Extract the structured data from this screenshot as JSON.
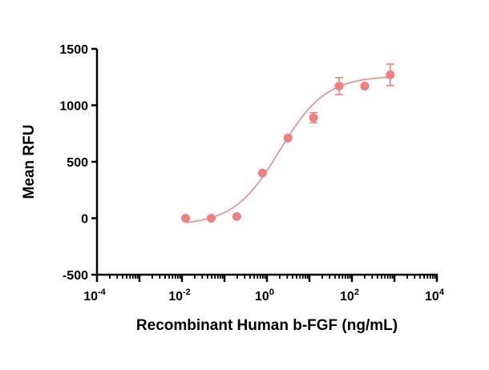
{
  "chart_data": {
    "type": "scatter",
    "title": "",
    "xlabel": "Recombinant Human b-FGF (ng/mL)",
    "ylabel": "Mean RFU",
    "xscale": "log",
    "xlim": [
      0.0001,
      10000
    ],
    "ylim": [
      -500,
      1500
    ],
    "xticks": [
      {
        "base": "10",
        "exp": "-4",
        "value": 0.0001
      },
      {
        "base": "10",
        "exp": "-2",
        "value": 0.01
      },
      {
        "base": "10",
        "exp": "0",
        "value": 1
      },
      {
        "base": "10",
        "exp": "2",
        "value": 100
      },
      {
        "base": "10",
        "exp": "4",
        "value": 10000
      }
    ],
    "yticks": [
      "-500",
      "0",
      "500",
      "1000",
      "1500"
    ],
    "grid": false,
    "color": "#f08080",
    "curve_color": "#e88c8c",
    "series": [
      {
        "name": "b-FGF",
        "x": [
          0.0122,
          0.0488,
          0.195,
          0.781,
          3.125,
          12.5,
          50,
          200,
          800
        ],
        "y": [
          0,
          0,
          15,
          400,
          710,
          890,
          1170,
          1170,
          1270
        ],
        "error": [
          0,
          0,
          0,
          0,
          0,
          45,
          75,
          0,
          95
        ]
      }
    ],
    "fit": {
      "model": "4PL",
      "bottom": -60,
      "top": 1260,
      "ec50": 2.0,
      "hill": 0.8
    }
  }
}
